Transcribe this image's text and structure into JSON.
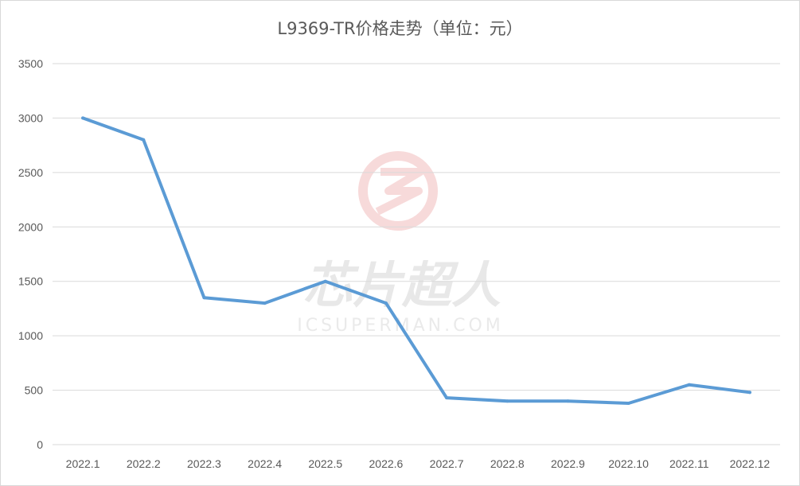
{
  "watermark": {
    "logo": "ic-superman-logo",
    "cn": "芯片超人",
    "en": "ICSUPERMAN.COM"
  },
  "chart_data": {
    "type": "line",
    "title": "L9369-TR价格走势（单位：元）",
    "categories": [
      "2022.1",
      "2022.2",
      "2022.3",
      "2022.4",
      "2022.5",
      "2022.6",
      "2022.7",
      "2022.8",
      "2022.9",
      "2022.10",
      "2022.11",
      "2022.12"
    ],
    "series": [
      {
        "values": [
          3000,
          2800,
          1350,
          1300,
          1500,
          1300,
          430,
          400,
          400,
          380,
          550,
          480
        ],
        "color": "#5b9bd5"
      }
    ],
    "ylim": [
      0,
      3500
    ],
    "yticks": [
      0,
      500,
      1000,
      1500,
      2000,
      2500,
      3000,
      3500
    ],
    "xlabel": "",
    "ylabel": "",
    "grid": true,
    "gridColor": "#d9d9d9",
    "legend": "none"
  }
}
